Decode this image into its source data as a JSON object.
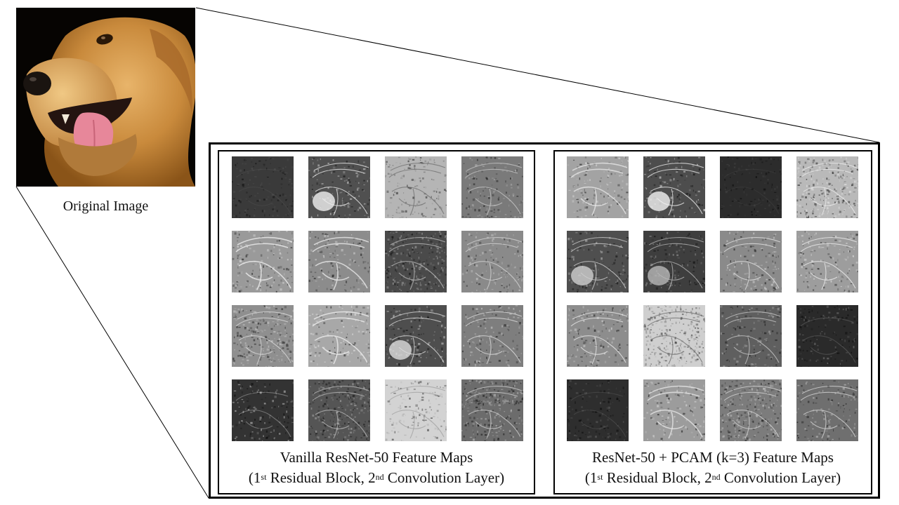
{
  "original": {
    "caption": "Original Image"
  },
  "panels": [
    {
      "id": "vanilla",
      "title": "Vanilla ResNet-50 Feature Maps",
      "sub_open": "(1",
      "sub_sup1": "st",
      "sub_mid": " Residual Block, 2",
      "sub_sup2": "nd",
      "sub_close": " Convolution Layer)",
      "maps": [
        {
          "base": "#3a3a3a",
          "edge": "#5a5a5a",
          "style": "dark"
        },
        {
          "base": "#505050",
          "edge": "#f0f0f0",
          "style": "mixed"
        },
        {
          "base": "#b5b5b5",
          "edge": "#6e6e6e",
          "style": "light"
        },
        {
          "base": "#7a7a7a",
          "edge": "#c8c8c8",
          "style": "mid"
        },
        {
          "base": "#9a9a9a",
          "edge": "#f2f2f2",
          "style": "edge"
        },
        {
          "base": "#8c8c8c",
          "edge": "#ececec",
          "style": "edge"
        },
        {
          "base": "#4a4a4a",
          "edge": "#c0c0c0",
          "style": "texture"
        },
        {
          "base": "#8a8a8a",
          "edge": "#d5d5d5",
          "style": "mid"
        },
        {
          "base": "#8f8f8f",
          "edge": "#dcdcdc",
          "style": "texture"
        },
        {
          "base": "#a8a8a8",
          "edge": "#f0f0f0",
          "style": "edge"
        },
        {
          "base": "#4e4e4e",
          "edge": "#dddddd",
          "style": "mixed"
        },
        {
          "base": "#7e7e7e",
          "edge": "#e0e0e0",
          "style": "mid"
        },
        {
          "base": "#333333",
          "edge": "#e8e8e8",
          "style": "dark"
        },
        {
          "base": "#555555",
          "edge": "#bdbdbd",
          "style": "texture"
        },
        {
          "base": "#d3d3d3",
          "edge": "#a0a0a0",
          "style": "light"
        },
        {
          "base": "#6c6c6c",
          "edge": "#d0d0d0",
          "style": "texture"
        }
      ]
    },
    {
      "id": "pcam",
      "title": "ResNet-50 + PCAM (k=3) Feature Maps",
      "sub_open": "(1",
      "sub_sup1": "st",
      "sub_mid": " Residual Block, 2",
      "sub_sup2": "nd",
      "sub_close": " Convolution Layer)",
      "maps": [
        {
          "base": "#a3a3a3",
          "edge": "#e8e8e8",
          "style": "edge"
        },
        {
          "base": "#4d4d4d",
          "edge": "#f3f3f3",
          "style": "mixed"
        },
        {
          "base": "#2c2c2c",
          "edge": "#4a4a4a",
          "style": "dark"
        },
        {
          "base": "#b9b9b9",
          "edge": "#ececec",
          "style": "texture"
        },
        {
          "base": "#4f4f4f",
          "edge": "#d0d0d0",
          "style": "mixed"
        },
        {
          "base": "#3e3e3e",
          "edge": "#b9b9b9",
          "style": "mixed"
        },
        {
          "base": "#8a8a8a",
          "edge": "#e6e6e6",
          "style": "mid"
        },
        {
          "base": "#9d9d9d",
          "edge": "#f0f0f0",
          "style": "mid"
        },
        {
          "base": "#8d8d8d",
          "edge": "#eeeeee",
          "style": "mid"
        },
        {
          "base": "#cfcfcf",
          "edge": "#6a6a6a",
          "style": "texture"
        },
        {
          "base": "#5f5f5f",
          "edge": "#c9c9c9",
          "style": "mid"
        },
        {
          "base": "#2a2a2a",
          "edge": "#8a8a8a",
          "style": "dark"
        },
        {
          "base": "#2e2e2e",
          "edge": "#6a6a6a",
          "style": "dark"
        },
        {
          "base": "#9c9c9c",
          "edge": "#e9e9e9",
          "style": "edge"
        },
        {
          "base": "#7c7c7c",
          "edge": "#d7d7d7",
          "style": "texture"
        },
        {
          "base": "#6f6f6f",
          "edge": "#dadada",
          "style": "mid"
        }
      ]
    }
  ]
}
